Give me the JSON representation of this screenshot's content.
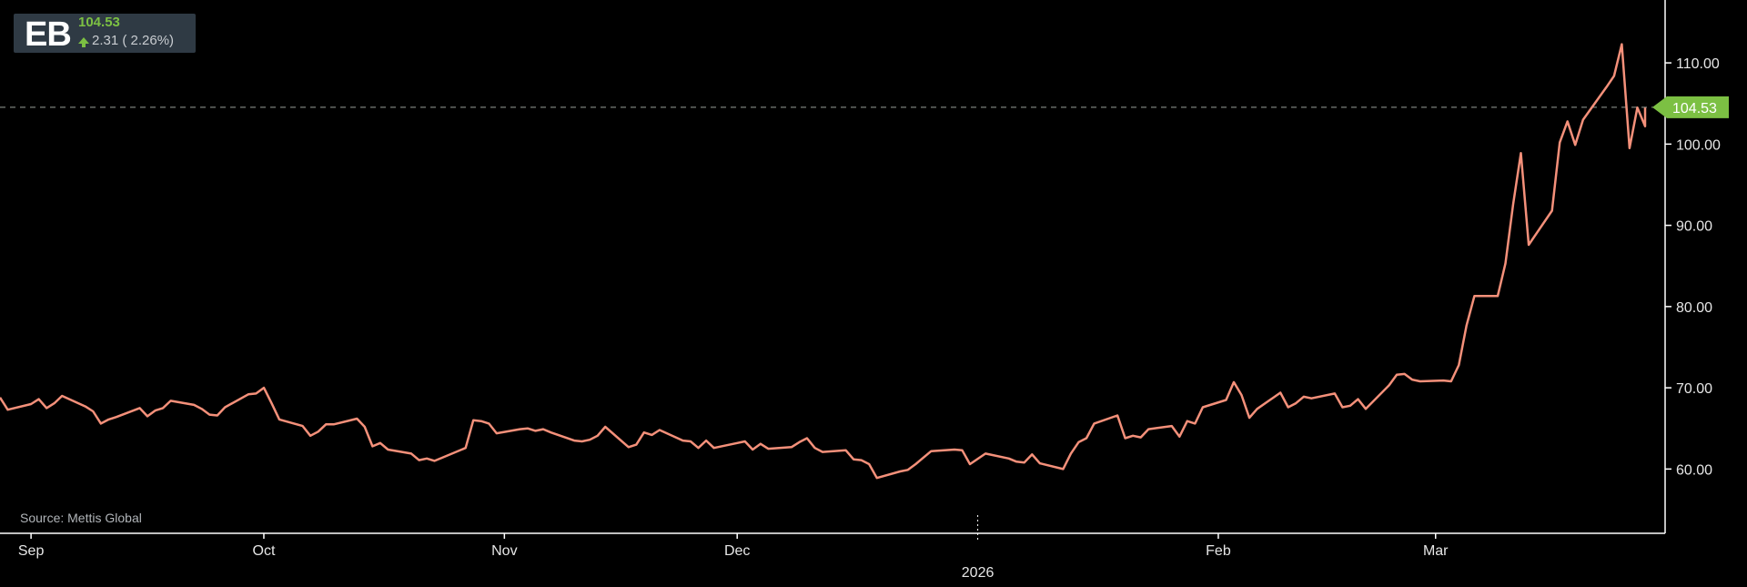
{
  "ticker": {
    "symbol": "EB",
    "price": "104.53",
    "change": "2.31 ( 2.26%)",
    "change_direction_icon": "arrow-up-icon",
    "up_color": "#7cc043"
  },
  "source_note": "Source: Mettis Global",
  "chart_data": {
    "type": "line",
    "title": "",
    "xlabel": "",
    "ylabel": "",
    "line_color": "#f4907a",
    "last_price_tag": {
      "value": 104.53,
      "label": "104.53",
      "color": "#7cc043"
    },
    "ylim": [
      55,
      115.5
    ],
    "y_ticks": [
      {
        "value": 60,
        "label": "60.00"
      },
      {
        "value": 70,
        "label": "70.00"
      },
      {
        "value": 80,
        "label": "80.00"
      },
      {
        "value": 90,
        "label": "90.00"
      },
      {
        "value": 100,
        "label": "100.00"
      },
      {
        "value": 110,
        "label": "110.00"
      }
    ],
    "x_ticks": [
      {
        "date": "2025-09-01",
        "label": "Sep"
      },
      {
        "date": "2025-10-01",
        "label": "Oct"
      },
      {
        "date": "2025-11-01",
        "label": "Nov"
      },
      {
        "date": "2025-12-01",
        "label": "Dec"
      },
      {
        "date": "2026-01-01",
        "label": "2026",
        "year_marker": true
      },
      {
        "date": "2026-02-01",
        "label": "Feb"
      },
      {
        "date": "2026-03-01",
        "label": "Mar"
      }
    ],
    "x_range": [
      "2025-08-28",
      "2026-03-28"
    ],
    "series": [
      {
        "values": [
          [
            "2025-08-28",
            68.8
          ],
          [
            "2025-08-29",
            67.3
          ],
          [
            "2025-09-01",
            68.0
          ],
          [
            "2025-09-02",
            68.6
          ],
          [
            "2025-09-03",
            67.5
          ],
          [
            "2025-09-04",
            68.1
          ],
          [
            "2025-09-05",
            69.0
          ],
          [
            "2025-09-08",
            67.7
          ],
          [
            "2025-09-09",
            67.1
          ],
          [
            "2025-09-10",
            65.6
          ],
          [
            "2025-09-11",
            66.1
          ],
          [
            "2025-09-12",
            66.4
          ],
          [
            "2025-09-15",
            67.5
          ],
          [
            "2025-09-16",
            66.5
          ],
          [
            "2025-09-17",
            67.2
          ],
          [
            "2025-09-18",
            67.5
          ],
          [
            "2025-09-19",
            68.4
          ],
          [
            "2025-09-22",
            67.9
          ],
          [
            "2025-09-23",
            67.4
          ],
          [
            "2025-09-24",
            66.7
          ],
          [
            "2025-09-25",
            66.6
          ],
          [
            "2025-09-26",
            67.6
          ],
          [
            "2025-09-29",
            69.2
          ],
          [
            "2025-09-30",
            69.3
          ],
          [
            "2025-10-01",
            70.0
          ],
          [
            "2025-10-02",
            68.1
          ],
          [
            "2025-10-03",
            66.1
          ],
          [
            "2025-10-06",
            65.3
          ],
          [
            "2025-10-07",
            64.1
          ],
          [
            "2025-10-08",
            64.6
          ],
          [
            "2025-10-09",
            65.5
          ],
          [
            "2025-10-10",
            65.5
          ],
          [
            "2025-10-13",
            66.2
          ],
          [
            "2025-10-14",
            65.2
          ],
          [
            "2025-10-15",
            62.8
          ],
          [
            "2025-10-16",
            63.2
          ],
          [
            "2025-10-17",
            62.4
          ],
          [
            "2025-10-20",
            61.9
          ],
          [
            "2025-10-21",
            61.1
          ],
          [
            "2025-10-22",
            61.3
          ],
          [
            "2025-10-23",
            61.0
          ],
          [
            "2025-10-24",
            61.4
          ],
          [
            "2025-10-27",
            62.6
          ],
          [
            "2025-10-28",
            66.0
          ],
          [
            "2025-10-29",
            65.9
          ],
          [
            "2025-10-30",
            65.6
          ],
          [
            "2025-10-31",
            64.4
          ],
          [
            "2025-11-03",
            64.9
          ],
          [
            "2025-11-04",
            65.0
          ],
          [
            "2025-11-05",
            64.7
          ],
          [
            "2025-11-06",
            64.9
          ],
          [
            "2025-11-07",
            64.5
          ],
          [
            "2025-11-10",
            63.5
          ],
          [
            "2025-11-11",
            63.4
          ],
          [
            "2025-11-12",
            63.6
          ],
          [
            "2025-11-13",
            64.1
          ],
          [
            "2025-11-14",
            65.2
          ],
          [
            "2025-11-17",
            62.7
          ],
          [
            "2025-11-18",
            63.0
          ],
          [
            "2025-11-19",
            64.5
          ],
          [
            "2025-11-20",
            64.2
          ],
          [
            "2025-11-21",
            64.8
          ],
          [
            "2025-11-24",
            63.5
          ],
          [
            "2025-11-25",
            63.4
          ],
          [
            "2025-11-26",
            62.6
          ],
          [
            "2025-11-27",
            63.5
          ],
          [
            "2025-11-28",
            62.6
          ],
          [
            "2025-12-01",
            63.2
          ],
          [
            "2025-12-02",
            63.4
          ],
          [
            "2025-12-03",
            62.4
          ],
          [
            "2025-12-04",
            63.1
          ],
          [
            "2025-12-05",
            62.5
          ],
          [
            "2025-12-08",
            62.7
          ],
          [
            "2025-12-09",
            63.3
          ],
          [
            "2025-12-10",
            63.8
          ],
          [
            "2025-12-11",
            62.6
          ],
          [
            "2025-12-12",
            62.1
          ],
          [
            "2025-12-15",
            62.3
          ],
          [
            "2025-12-16",
            61.2
          ],
          [
            "2025-12-17",
            61.1
          ],
          [
            "2025-12-18",
            60.6
          ],
          [
            "2025-12-19",
            58.9
          ],
          [
            "2025-12-22",
            59.7
          ],
          [
            "2025-12-23",
            59.9
          ],
          [
            "2025-12-24",
            60.6
          ],
          [
            "2025-12-26",
            62.2
          ],
          [
            "2025-12-29",
            62.4
          ],
          [
            "2025-12-30",
            62.3
          ],
          [
            "2025-12-31",
            60.6
          ],
          [
            "2026-01-02",
            61.9
          ],
          [
            "2026-01-05",
            61.3
          ],
          [
            "2026-01-06",
            60.9
          ],
          [
            "2026-01-07",
            60.8
          ],
          [
            "2026-01-08",
            61.8
          ],
          [
            "2026-01-09",
            60.7
          ],
          [
            "2026-01-12",
            60.0
          ],
          [
            "2026-01-13",
            61.9
          ],
          [
            "2026-01-14",
            63.3
          ],
          [
            "2026-01-15",
            63.8
          ],
          [
            "2026-01-16",
            65.6
          ],
          [
            "2026-01-19",
            66.6
          ],
          [
            "2026-01-20",
            63.8
          ],
          [
            "2026-01-21",
            64.1
          ],
          [
            "2026-01-22",
            63.9
          ],
          [
            "2026-01-23",
            64.9
          ],
          [
            "2026-01-26",
            65.3
          ],
          [
            "2026-01-27",
            64.0
          ],
          [
            "2026-01-28",
            65.9
          ],
          [
            "2026-01-29",
            65.6
          ],
          [
            "2026-01-30",
            67.6
          ],
          [
            "2026-02-02",
            68.5
          ],
          [
            "2026-02-03",
            70.7
          ],
          [
            "2026-02-04",
            69.1
          ],
          [
            "2026-02-05",
            66.3
          ],
          [
            "2026-02-06",
            67.4
          ],
          [
            "2026-02-09",
            69.4
          ],
          [
            "2026-02-10",
            67.6
          ],
          [
            "2026-02-11",
            68.1
          ],
          [
            "2026-02-12",
            68.9
          ],
          [
            "2026-02-13",
            68.7
          ],
          [
            "2026-02-16",
            69.3
          ],
          [
            "2026-02-17",
            67.6
          ],
          [
            "2026-02-18",
            67.8
          ],
          [
            "2026-02-19",
            68.6
          ],
          [
            "2026-02-20",
            67.4
          ],
          [
            "2026-02-23",
            70.3
          ],
          [
            "2026-02-24",
            71.6
          ],
          [
            "2026-02-25",
            71.7
          ],
          [
            "2026-02-26",
            71.0
          ],
          [
            "2026-02-27",
            70.8
          ],
          [
            "2026-03-02",
            70.9
          ],
          [
            "2026-03-03",
            70.8
          ],
          [
            "2026-03-04",
            72.8
          ],
          [
            "2026-03-05",
            77.7
          ],
          [
            "2026-03-06",
            81.3
          ],
          [
            "2026-03-09",
            81.3
          ],
          [
            "2026-03-10",
            85.3
          ],
          [
            "2026-03-11",
            92.6
          ],
          [
            "2026-03-12",
            98.9
          ],
          [
            "2026-03-13",
            87.6
          ],
          [
            "2026-03-16",
            91.8
          ],
          [
            "2026-03-17",
            100.2
          ],
          [
            "2026-03-18",
            102.8
          ],
          [
            "2026-03-19",
            99.9
          ],
          [
            "2026-03-20",
            103.0
          ],
          [
            "2026-03-23",
            107.0
          ],
          [
            "2026-03-24",
            108.4
          ],
          [
            "2026-03-25",
            112.3
          ],
          [
            "2026-03-26",
            99.5
          ],
          [
            "2026-03-27",
            104.5
          ],
          [
            "2026-03-28",
            102.2
          ],
          [
            "2026-03-30",
            104.5
          ]
        ]
      }
    ],
    "grid": false,
    "legend": "none"
  }
}
